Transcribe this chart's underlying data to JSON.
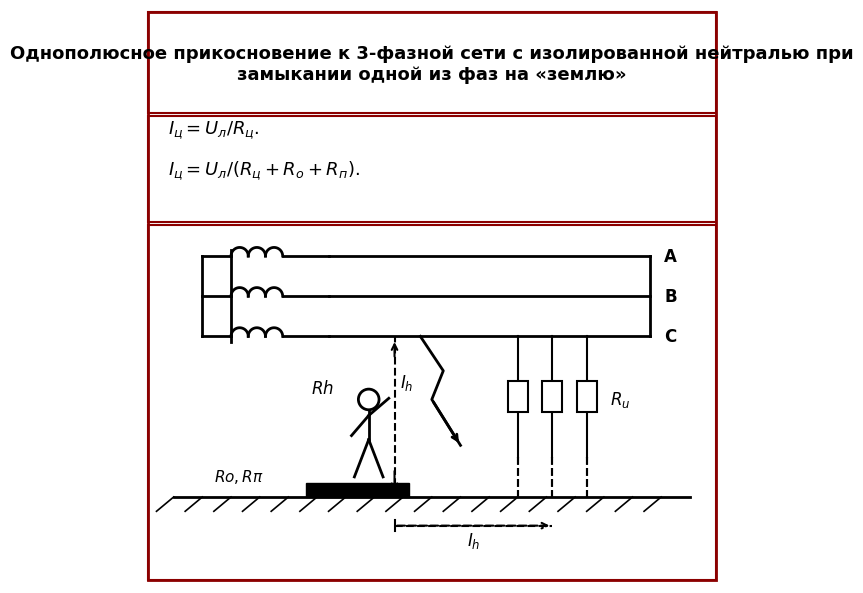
{
  "title": "Однополюсное прикосновение к 3-фазной сети с изолированной нейтралью при\nзамыкании одной из фаз на «землю»",
  "title_fontsize": 13,
  "formula1": "$I_{ц} = U_{л} / R_{ц}.$",
  "formula2": "$I_{ц} = U_{л} / (R_{ц} + R_{o} + R_{п}).$",
  "bg_color": "#ffffff",
  "border_color": "#8B0000",
  "line_color": "#000000",
  "label_A": "A",
  "label_B": "B",
  "label_C": "C",
  "label_Rh": "$Rh$",
  "label_Ih_vert": "$I_{h}$",
  "label_Ih_horiz": "$I_{h}$",
  "label_Ru": "$R_{u}$",
  "label_Ro": "$Ro, R\\pi$"
}
